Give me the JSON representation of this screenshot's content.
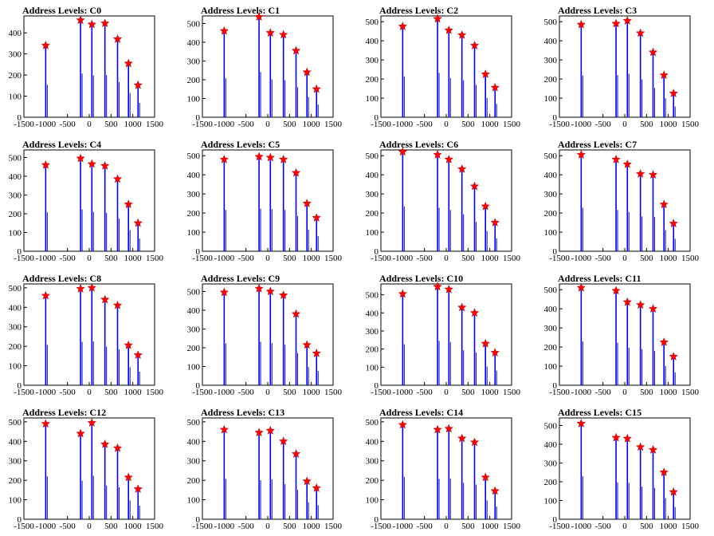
{
  "chart_data": [
    {
      "type": "bar",
      "title": "Address Levels: C0",
      "xlim": [
        -1500,
        1500
      ],
      "ylim": [
        0,
        480
      ],
      "x_ticks": [
        "-1500",
        "-1000",
        "-500",
        "0",
        "500",
        "1000",
        "1500"
      ],
      "y_ticks": [
        "0",
        "100",
        "200",
        "300",
        "400"
      ],
      "peaks": [
        {
          "x": -1000,
          "y": 340
        },
        {
          "x": -200,
          "y": 460
        },
        {
          "x": 60,
          "y": 440
        },
        {
          "x": 360,
          "y": 445
        },
        {
          "x": 650,
          "y": 370
        },
        {
          "x": 900,
          "y": 255
        },
        {
          "x": 1120,
          "y": 152
        }
      ]
    },
    {
      "type": "bar",
      "title": "Address Levels: C1",
      "xlim": [
        -1500,
        1500
      ],
      "ylim": [
        0,
        540
      ],
      "x_ticks": [
        "-1500",
        "-1000",
        "-500",
        "0",
        "500",
        "1000",
        "1500"
      ],
      "y_ticks": [
        "0",
        "100",
        "200",
        "300",
        "400",
        "500"
      ],
      "peaks": [
        {
          "x": -1000,
          "y": 460
        },
        {
          "x": -200,
          "y": 535
        },
        {
          "x": 60,
          "y": 450
        },
        {
          "x": 360,
          "y": 440
        },
        {
          "x": 650,
          "y": 355
        },
        {
          "x": 900,
          "y": 240
        },
        {
          "x": 1120,
          "y": 150
        }
      ]
    },
    {
      "type": "bar",
      "title": "Address Levels: C2",
      "xlim": [
        -1500,
        1500
      ],
      "ylim": [
        0,
        530
      ],
      "x_ticks": [
        "-1500",
        "-1000",
        "-500",
        "0",
        "500",
        "1000",
        "1500"
      ],
      "y_ticks": [
        "0",
        "100",
        "200",
        "300",
        "400",
        "500"
      ],
      "peaks": [
        {
          "x": -1000,
          "y": 475
        },
        {
          "x": -200,
          "y": 515
        },
        {
          "x": 60,
          "y": 455
        },
        {
          "x": 360,
          "y": 430
        },
        {
          "x": 650,
          "y": 375
        },
        {
          "x": 900,
          "y": 225
        },
        {
          "x": 1120,
          "y": 155
        }
      ]
    },
    {
      "type": "bar",
      "title": "Address Levels: C3",
      "xlim": [
        -1500,
        1500
      ],
      "ylim": [
        0,
        530
      ],
      "x_ticks": [
        "-1500",
        "-1000",
        "-500",
        "0",
        "500",
        "1000",
        "1500"
      ],
      "y_ticks": [
        "0",
        "100",
        "200",
        "300",
        "400",
        "500"
      ],
      "peaks": [
        {
          "x": -1000,
          "y": 485
        },
        {
          "x": -200,
          "y": 490
        },
        {
          "x": 60,
          "y": 505
        },
        {
          "x": 360,
          "y": 440
        },
        {
          "x": 650,
          "y": 340
        },
        {
          "x": 900,
          "y": 220
        },
        {
          "x": 1120,
          "y": 125
        }
      ]
    },
    {
      "type": "bar",
      "title": "Address Levels: C4",
      "xlim": [
        -1500,
        1500
      ],
      "ylim": [
        0,
        540
      ],
      "x_ticks": [
        "-1500",
        "-1000",
        "-500",
        "0",
        "500",
        "1000",
        "1500"
      ],
      "y_ticks": [
        "0",
        "100",
        "200",
        "300",
        "400",
        "500"
      ],
      "peaks": [
        {
          "x": -1000,
          "y": 460
        },
        {
          "x": -200,
          "y": 495
        },
        {
          "x": 60,
          "y": 465
        },
        {
          "x": 360,
          "y": 455
        },
        {
          "x": 650,
          "y": 385
        },
        {
          "x": 900,
          "y": 250
        },
        {
          "x": 1120,
          "y": 150
        }
      ]
    },
    {
      "type": "bar",
      "title": "Address Levels: C5",
      "xlim": [
        -1500,
        1500
      ],
      "ylim": [
        0,
        530
      ],
      "x_ticks": [
        "-1500",
        "-1000",
        "-500",
        "0",
        "500",
        "1000",
        "1500"
      ],
      "y_ticks": [
        "0",
        "100",
        "200",
        "300",
        "400",
        "500"
      ],
      "peaks": [
        {
          "x": -1000,
          "y": 480
        },
        {
          "x": -200,
          "y": 495
        },
        {
          "x": 60,
          "y": 490
        },
        {
          "x": 360,
          "y": 480
        },
        {
          "x": 650,
          "y": 410
        },
        {
          "x": 900,
          "y": 250
        },
        {
          "x": 1120,
          "y": 175
        }
      ]
    },
    {
      "type": "bar",
      "title": "Address Levels: C6",
      "xlim": [
        -1500,
        1500
      ],
      "ylim": [
        0,
        530
      ],
      "x_ticks": [
        "-1500",
        "-1000",
        "-500",
        "0",
        "500",
        "1000",
        "1500"
      ],
      "y_ticks": [
        "0",
        "100",
        "200",
        "300",
        "400",
        "500"
      ],
      "peaks": [
        {
          "x": -1000,
          "y": 520
        },
        {
          "x": -200,
          "y": 505
        },
        {
          "x": 60,
          "y": 480
        },
        {
          "x": 360,
          "y": 430
        },
        {
          "x": 650,
          "y": 340
        },
        {
          "x": 900,
          "y": 235
        },
        {
          "x": 1120,
          "y": 150
        }
      ]
    },
    {
      "type": "bar",
      "title": "Address Levels: C7",
      "xlim": [
        -1500,
        1500
      ],
      "ylim": [
        0,
        530
      ],
      "x_ticks": [
        "-1500",
        "-1000",
        "-500",
        "0",
        "500",
        "1000",
        "1500"
      ],
      "y_ticks": [
        "0",
        "100",
        "200",
        "300",
        "400",
        "500"
      ],
      "peaks": [
        {
          "x": -1000,
          "y": 505
        },
        {
          "x": -200,
          "y": 480
        },
        {
          "x": 60,
          "y": 455
        },
        {
          "x": 360,
          "y": 405
        },
        {
          "x": 650,
          "y": 400
        },
        {
          "x": 900,
          "y": 245
        },
        {
          "x": 1120,
          "y": 145
        }
      ]
    },
    {
      "type": "bar",
      "title": "Address Levels: C8",
      "xlim": [
        -1500,
        1500
      ],
      "ylim": [
        0,
        520
      ],
      "x_ticks": [
        "-1500",
        "-1000",
        "-500",
        "0",
        "500",
        "1000",
        "1500"
      ],
      "y_ticks": [
        "0",
        "100",
        "200",
        "300",
        "400",
        "500"
      ],
      "peaks": [
        {
          "x": -1000,
          "y": 460
        },
        {
          "x": -200,
          "y": 495
        },
        {
          "x": 60,
          "y": 500
        },
        {
          "x": 360,
          "y": 440
        },
        {
          "x": 650,
          "y": 410
        },
        {
          "x": 900,
          "y": 205
        },
        {
          "x": 1120,
          "y": 155
        }
      ]
    },
    {
      "type": "bar",
      "title": "Address Levels: C9",
      "xlim": [
        -1500,
        1500
      ],
      "ylim": [
        0,
        540
      ],
      "x_ticks": [
        "-1500",
        "-1000",
        "-500",
        "0",
        "500",
        "1000",
        "1500"
      ],
      "y_ticks": [
        "0",
        "100",
        "200",
        "300",
        "400",
        "500"
      ],
      "peaks": [
        {
          "x": -1000,
          "y": 495
        },
        {
          "x": -200,
          "y": 515
        },
        {
          "x": 60,
          "y": 500
        },
        {
          "x": 360,
          "y": 480
        },
        {
          "x": 650,
          "y": 380
        },
        {
          "x": 900,
          "y": 215
        },
        {
          "x": 1120,
          "y": 170
        }
      ]
    },
    {
      "type": "bar",
      "title": "Address Levels: C10",
      "xlim": [
        -1500,
        1500
      ],
      "ylim": [
        0,
        560
      ],
      "x_ticks": [
        "-1500",
        "-1000",
        "-500",
        "0",
        "500",
        "1000",
        "1500"
      ],
      "y_ticks": [
        "0",
        "100",
        "200",
        "300",
        "400",
        "500"
      ],
      "peaks": [
        {
          "x": -1000,
          "y": 505
        },
        {
          "x": -200,
          "y": 545
        },
        {
          "x": 60,
          "y": 530
        },
        {
          "x": 360,
          "y": 430
        },
        {
          "x": 650,
          "y": 400
        },
        {
          "x": 900,
          "y": 230
        },
        {
          "x": 1120,
          "y": 180
        }
      ]
    },
    {
      "type": "bar",
      "title": "Address Levels: C11",
      "xlim": [
        -1500,
        1500
      ],
      "ylim": [
        0,
        530
      ],
      "x_ticks": [
        "-1500",
        "-1000",
        "-500",
        "0",
        "500",
        "1000",
        "1500"
      ],
      "y_ticks": [
        "0",
        "100",
        "200",
        "300",
        "400",
        "500"
      ],
      "peaks": [
        {
          "x": -1000,
          "y": 510
        },
        {
          "x": -200,
          "y": 495
        },
        {
          "x": 60,
          "y": 435
        },
        {
          "x": 360,
          "y": 420
        },
        {
          "x": 650,
          "y": 400
        },
        {
          "x": 900,
          "y": 225
        },
        {
          "x": 1120,
          "y": 150
        }
      ]
    },
    {
      "type": "bar",
      "title": "Address Levels: C12",
      "xlim": [
        -1500,
        1500
      ],
      "ylim": [
        0,
        520
      ],
      "x_ticks": [
        "-1500",
        "-1000",
        "-500",
        "0",
        "500",
        "1000",
        "1500"
      ],
      "y_ticks": [
        "0",
        "100",
        "200",
        "300",
        "400",
        "500"
      ],
      "peaks": [
        {
          "x": -1000,
          "y": 490
        },
        {
          "x": -200,
          "y": 440
        },
        {
          "x": 60,
          "y": 495
        },
        {
          "x": 360,
          "y": 385
        },
        {
          "x": 650,
          "y": 365
        },
        {
          "x": 900,
          "y": 215
        },
        {
          "x": 1120,
          "y": 155
        }
      ]
    },
    {
      "type": "bar",
      "title": "Address Levels: C13",
      "xlim": [
        -1500,
        1500
      ],
      "ylim": [
        0,
        520
      ],
      "x_ticks": [
        "-1500",
        "-1000",
        "-500",
        "0",
        "500",
        "1000",
        "1500"
      ],
      "y_ticks": [
        "0",
        "100",
        "200",
        "300",
        "400",
        "500"
      ],
      "peaks": [
        {
          "x": -1000,
          "y": 460
        },
        {
          "x": -200,
          "y": 445
        },
        {
          "x": 60,
          "y": 455
        },
        {
          "x": 360,
          "y": 400
        },
        {
          "x": 650,
          "y": 335
        },
        {
          "x": 900,
          "y": 195
        },
        {
          "x": 1120,
          "y": 160
        }
      ]
    },
    {
      "type": "bar",
      "title": "Address Levels: C14",
      "xlim": [
        -1500,
        1500
      ],
      "ylim": [
        0,
        520
      ],
      "x_ticks": [
        "-1500",
        "-1000",
        "-500",
        "0",
        "500",
        "1000",
        "1500"
      ],
      "y_ticks": [
        "0",
        "100",
        "200",
        "300",
        "400",
        "500"
      ],
      "peaks": [
        {
          "x": -1000,
          "y": 485
        },
        {
          "x": -200,
          "y": 460
        },
        {
          "x": 60,
          "y": 465
        },
        {
          "x": 360,
          "y": 415
        },
        {
          "x": 650,
          "y": 395
        },
        {
          "x": 900,
          "y": 215
        },
        {
          "x": 1120,
          "y": 145
        }
      ]
    },
    {
      "type": "bar",
      "title": "Address Levels: C15",
      "xlim": [
        -1500,
        1500
      ],
      "ylim": [
        0,
        540
      ],
      "x_ticks": [
        "-1500",
        "-1000",
        "-500",
        "0",
        "500",
        "1000",
        "1500"
      ],
      "y_ticks": [
        "0",
        "100",
        "200",
        "300",
        "400",
        "500"
      ],
      "peaks": [
        {
          "x": -1000,
          "y": 510
        },
        {
          "x": -200,
          "y": 435
        },
        {
          "x": 60,
          "y": 430
        },
        {
          "x": 360,
          "y": 385
        },
        {
          "x": 650,
          "y": 370
        },
        {
          "x": 900,
          "y": 250
        },
        {
          "x": 1120,
          "y": 145
        }
      ]
    }
  ],
  "colors": {
    "bar": "#0000ff",
    "marker": "#ff0000",
    "axis": "#000000"
  }
}
